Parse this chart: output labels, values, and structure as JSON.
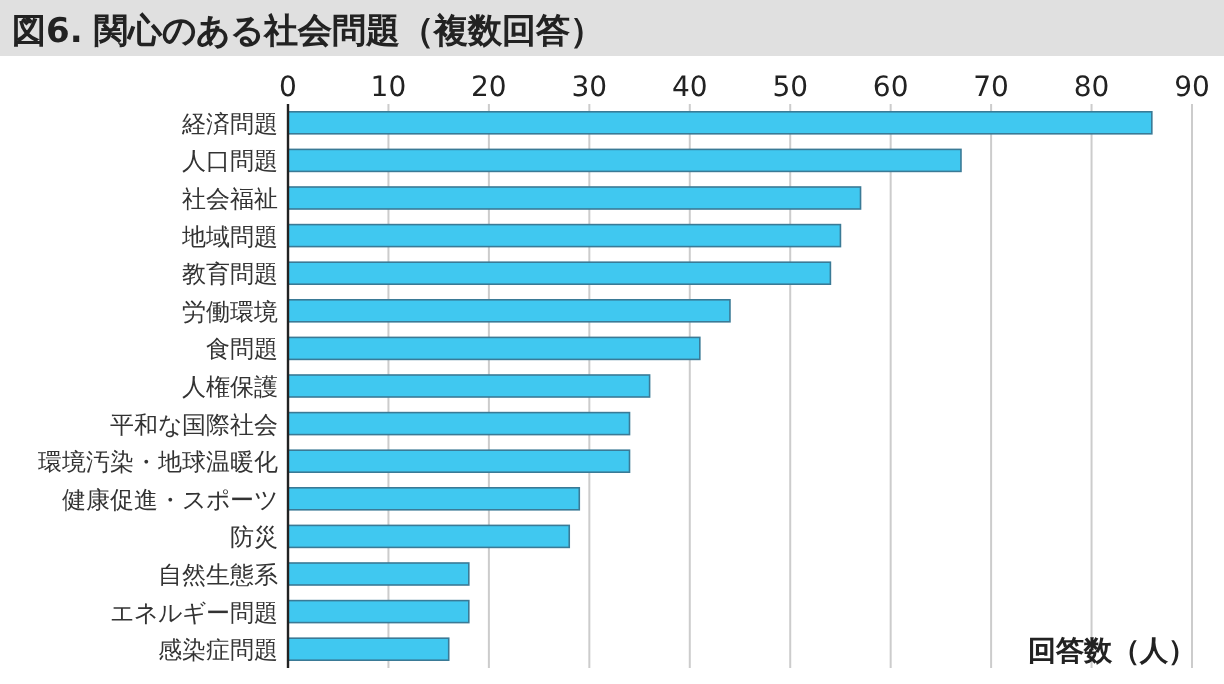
{
  "chart_data": {
    "type": "bar",
    "orientation": "horizontal",
    "title": "図6. 関心のある社会問題（複数回答）",
    "xlabel": "回答数（人）",
    "categories": [
      "経済問題",
      "人口問題",
      "社会福祉",
      "地域問題",
      "教育問題",
      "労働環境",
      "食問題",
      "人権保護",
      "平和な国際社会",
      "環境汚染・地球温暖化",
      "健康促進・スポーツ",
      "防災",
      "自然生態系",
      "エネルギー問題",
      "感染症問題"
    ],
    "values": [
      86,
      67,
      57,
      55,
      54,
      44,
      41,
      36,
      34,
      34,
      29,
      28,
      18,
      18,
      16
    ],
    "color": "#40c8f0",
    "xlim": [
      0,
      90
    ],
    "xticks": [
      0,
      10,
      20,
      30,
      40,
      50,
      60,
      70,
      80,
      90
    ],
    "grid": true
  }
}
